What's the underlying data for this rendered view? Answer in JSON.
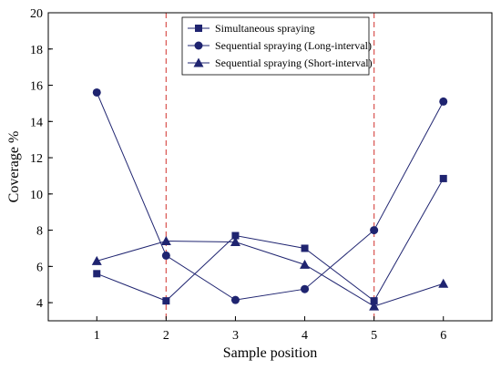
{
  "chart_data": {
    "type": "line",
    "xlabel": "Sample position",
    "ylabel": "Coverage %",
    "x": [
      1,
      2,
      3,
      4,
      5,
      6
    ],
    "xlim": [
      0.3,
      6.7
    ],
    "ylim": [
      3,
      20
    ],
    "yticks": [
      4,
      6,
      8,
      10,
      12,
      14,
      16,
      18,
      20
    ],
    "xticks": [
      1,
      2,
      3,
      4,
      5,
      6
    ],
    "grid": false,
    "legend_position": "top-center",
    "reference_lines_x": [
      2,
      5
    ],
    "series": [
      {
        "name": "Simultaneous spraying",
        "marker": "square",
        "values": [
          5.6,
          4.1,
          7.7,
          7.0,
          4.1,
          10.85
        ]
      },
      {
        "name": "Sequential spraying (Long-interval)",
        "marker": "circle",
        "values": [
          15.6,
          6.6,
          4.15,
          4.75,
          8.0,
          15.1
        ]
      },
      {
        "name": "Sequential spraying (Short-interval)",
        "marker": "triangle",
        "values": [
          6.3,
          7.4,
          7.35,
          6.1,
          3.8,
          5.05
        ]
      }
    ],
    "colors": {
      "series": "#1f2470",
      "reference_line": "#d9534f",
      "axis": "#000000"
    }
  }
}
